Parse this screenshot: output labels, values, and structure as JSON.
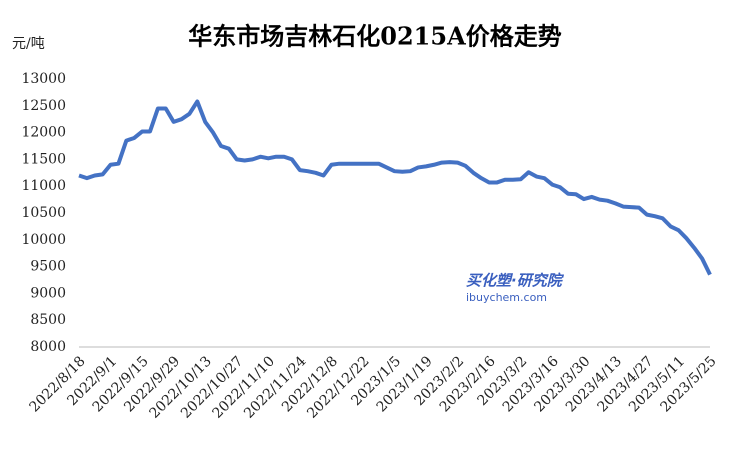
{
  "chart_data": {
    "type": "line",
    "title": "华东市场吉林石化0215A价格走势",
    "y_label": "元/吨",
    "watermark": {
      "brand": "买化塑·研究院",
      "site": "ibuychem.com"
    },
    "categories": [
      "2022/8/18",
      null,
      null,
      null,
      "2022/9/1",
      null,
      null,
      null,
      "2022/9/15",
      null,
      null,
      null,
      "2022/9/29",
      null,
      null,
      null,
      "2022/10/13",
      null,
      null,
      null,
      "2022/10/27",
      null,
      null,
      null,
      "2022/11/10",
      null,
      null,
      null,
      "2022/11/24",
      null,
      null,
      null,
      "2022/12/8",
      null,
      null,
      null,
      "2022/12/22",
      null,
      null,
      null,
      "2023/1/5",
      null,
      null,
      null,
      "2023/1/19",
      null,
      null,
      null,
      "2023/2/2",
      null,
      null,
      null,
      "2023/2/16",
      null,
      null,
      null,
      "2023/3/2",
      null,
      null,
      null,
      "2023/3/16",
      null,
      null,
      null,
      "2023/3/30",
      null,
      null,
      null,
      "2023/4/13",
      null,
      null,
      null,
      "2023/4/27",
      null,
      null,
      null,
      "2023/5/11",
      null,
      null,
      null,
      "2023/5/25"
    ],
    "series": [
      {
        "name": "吉林石化0215A",
        "color": "#4472c4",
        "values": [
          11200,
          11150,
          11200,
          11220,
          11400,
          11420,
          11850,
          11900,
          12020,
          12020,
          12450,
          12450,
          12200,
          12250,
          12350,
          12580,
          12200,
          12000,
          11750,
          11700,
          11500,
          11480,
          11500,
          11550,
          11520,
          11550,
          11550,
          11500,
          11300,
          11280,
          11250,
          11200,
          11400,
          11420,
          11420,
          11420,
          11420,
          11420,
          11420,
          11350,
          11280,
          11270,
          11280,
          11350,
          11370,
          11400,
          11440,
          11450,
          11440,
          11380,
          11250,
          11150,
          11070,
          11070,
          11120,
          11120,
          11130,
          11260,
          11180,
          11150,
          11030,
          10980,
          10860,
          10850,
          10760,
          10800,
          10750,
          10730,
          10680,
          10620,
          10610,
          10600,
          10470,
          10440,
          10400,
          10250,
          10180,
          10030,
          9850,
          9650,
          9350
        ]
      }
    ],
    "ylim": [
      8000,
      13000
    ],
    "yticks": [
      8000,
      8500,
      9000,
      9500,
      10000,
      10500,
      11000,
      11500,
      12000,
      12500,
      13000
    ],
    "grid": false
  }
}
